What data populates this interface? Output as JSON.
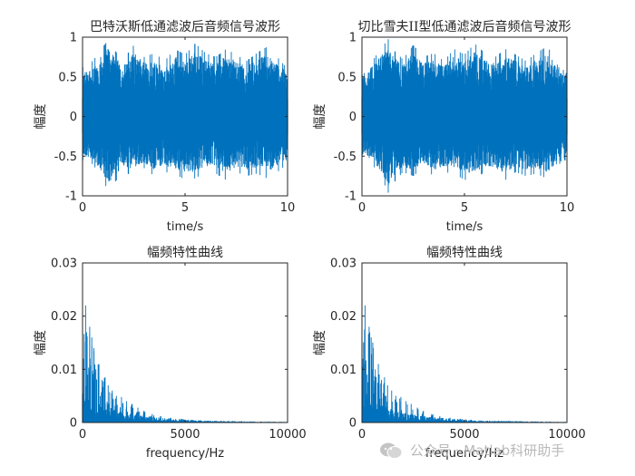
{
  "chart_data": [
    {
      "type": "line",
      "title": "巴特沃斯低通滤波后音频信号波形",
      "xlabel": "time/s",
      "ylabel": "幅度",
      "xlim": [
        0,
        10
      ],
      "ylim": [
        -1,
        1
      ],
      "xticks": [
        0,
        5,
        10
      ],
      "yticks": [
        -1,
        -0.5,
        0,
        0.5,
        1
      ],
      "xtick_labels": [
        "0",
        "5",
        "10"
      ],
      "ytick_labels": [
        "-1",
        "-0.5",
        "0",
        "0.5",
        "1"
      ],
      "color": "#0072bd",
      "grid": false,
      "envelope": {
        "x": [
          0,
          0.5,
          1,
          1.3,
          1.5,
          2,
          2.5,
          3,
          3.5,
          4,
          4.5,
          5,
          5.5,
          6,
          6.5,
          7,
          7.5,
          8,
          8.5,
          9,
          9.5,
          10
        ],
        "y_max": [
          0.62,
          0.7,
          0.88,
          0.98,
          0.85,
          0.72,
          0.9,
          0.75,
          0.8,
          0.7,
          0.85,
          0.78,
          0.92,
          0.8,
          0.75,
          0.85,
          0.78,
          0.7,
          0.8,
          0.88,
          0.75,
          0.6
        ],
        "y_min": [
          -0.55,
          -0.6,
          -0.8,
          -0.97,
          -0.85,
          -0.7,
          -0.75,
          -0.65,
          -0.75,
          -0.7,
          -0.72,
          -0.8,
          -0.78,
          -0.7,
          -0.72,
          -0.8,
          -0.7,
          -0.75,
          -0.72,
          -0.78,
          -0.7,
          -0.6
        ]
      }
    },
    {
      "type": "line",
      "title": "切比雪夫II型低通滤波后音频信号波形",
      "xlabel": "time/s",
      "ylabel": "幅度",
      "xlim": [
        0,
        10
      ],
      "ylim": [
        -1,
        1
      ],
      "xticks": [
        0,
        5,
        10
      ],
      "yticks": [
        -1,
        -0.5,
        0,
        0.5,
        1
      ],
      "xtick_labels": [
        "0",
        "5",
        "10"
      ],
      "ytick_labels": [
        "-1",
        "-0.5",
        "0",
        "0.5",
        "1"
      ],
      "color": "#0072bd",
      "grid": false,
      "envelope": {
        "x": [
          0,
          0.5,
          1,
          1.3,
          1.5,
          2,
          2.5,
          3,
          3.5,
          4,
          4.5,
          5,
          5.5,
          6,
          6.5,
          7,
          7.5,
          8,
          8.5,
          9,
          9.5,
          10
        ],
        "y_max": [
          0.62,
          0.7,
          0.88,
          0.98,
          0.85,
          0.72,
          0.9,
          0.75,
          0.8,
          0.7,
          0.85,
          0.78,
          0.92,
          0.8,
          0.75,
          0.85,
          0.78,
          0.7,
          0.8,
          0.88,
          0.75,
          0.6
        ],
        "y_min": [
          -0.55,
          -0.6,
          -0.8,
          -0.97,
          -0.85,
          -0.7,
          -0.75,
          -0.65,
          -0.75,
          -0.7,
          -0.72,
          -0.8,
          -0.78,
          -0.7,
          -0.72,
          -0.8,
          -0.7,
          -0.75,
          -0.72,
          -0.78,
          -0.7,
          -0.6
        ]
      }
    },
    {
      "type": "line",
      "title": "幅频特性曲线",
      "xlabel": "frequency/Hz",
      "ylabel": "幅度",
      "xlim": [
        0,
        10000
      ],
      "ylim": [
        0,
        0.03
      ],
      "xticks": [
        0,
        5000,
        10000
      ],
      "yticks": [
        0,
        0.01,
        0.02,
        0.03
      ],
      "xtick_labels": [
        "0",
        "5000",
        "10000"
      ],
      "ytick_labels": [
        "0",
        "0.01",
        "0.02",
        "0.03"
      ],
      "color": "#0072bd",
      "grid": false,
      "peaks": {
        "x": [
          50,
          150,
          250,
          350,
          450,
          550,
          650,
          800,
          950,
          1100,
          1250,
          1450,
          1650,
          1900,
          2150,
          2400,
          2700,
          3000,
          3400,
          3800,
          4300,
          4800,
          5300
        ],
        "y": [
          0.012,
          0.022,
          0.009,
          0.018,
          0.016,
          0.014,
          0.01,
          0.011,
          0.008,
          0.0085,
          0.007,
          0.006,
          0.005,
          0.0048,
          0.004,
          0.0035,
          0.0028,
          0.0022,
          0.0016,
          0.0012,
          0.0009,
          0.0007,
          0.0005
        ]
      },
      "noise_floor": {
        "x": [
          0,
          2000,
          4000,
          6000,
          8000,
          10000
        ],
        "y": [
          0.004,
          0.0015,
          0.0007,
          0.0003,
          0.0002,
          0.0001
        ]
      }
    },
    {
      "type": "line",
      "title": "幅频特性曲线",
      "xlabel": "frequency/Hz",
      "ylabel": "幅度",
      "xlim": [
        0,
        10000
      ],
      "ylim": [
        0,
        0.03
      ],
      "xticks": [
        0,
        5000,
        10000
      ],
      "yticks": [
        0,
        0.01,
        0.02,
        0.03
      ],
      "xtick_labels": [
        "0",
        "5000",
        "10000"
      ],
      "ytick_labels": [
        "0",
        "0.01",
        "0.02",
        "0.03"
      ],
      "color": "#0072bd",
      "grid": false,
      "peaks": {
        "x": [
          50,
          150,
          250,
          350,
          450,
          550,
          650,
          800,
          950,
          1100,
          1250,
          1450,
          1650,
          1900,
          2150,
          2400,
          2700,
          3000,
          3400,
          3800,
          4300,
          4800,
          5300
        ],
        "y": [
          0.012,
          0.022,
          0.009,
          0.018,
          0.016,
          0.014,
          0.01,
          0.011,
          0.008,
          0.0085,
          0.007,
          0.006,
          0.005,
          0.0048,
          0.004,
          0.0035,
          0.0028,
          0.0022,
          0.0016,
          0.0012,
          0.0009,
          0.0007,
          0.0005
        ]
      },
      "noise_floor": {
        "x": [
          0,
          2000,
          4000,
          6000,
          8000,
          10000
        ],
        "y": [
          0.004,
          0.0015,
          0.0007,
          0.0003,
          0.0002,
          0.0001
        ]
      }
    }
  ],
  "watermark": {
    "text": "公众号 · Matlab科研助手",
    "icon": "wechat-icon"
  }
}
